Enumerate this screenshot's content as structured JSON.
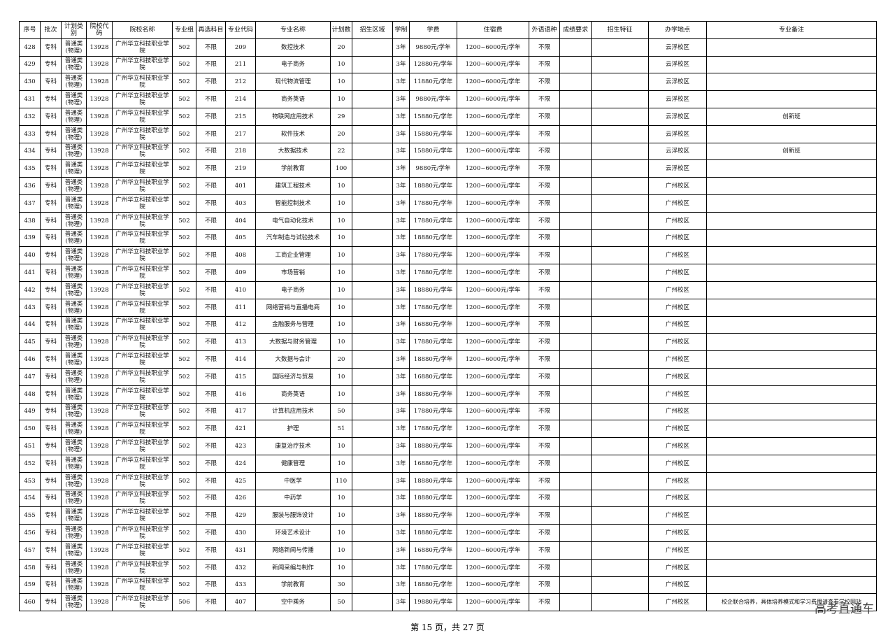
{
  "table": {
    "header": [
      "序号",
      "批次",
      "计划类别",
      "院校代码",
      "院校名称",
      "专业组",
      "再选科目",
      "专业代码",
      "专业名称",
      "计划数",
      "招生区域",
      "学制",
      "学费",
      "住宿费",
      "外语语种",
      "成绩要求",
      "招生特征",
      "办学地点",
      "专业备注"
    ],
    "rows": [
      {
        "n": "428",
        "b": "专科",
        "t": "普通类(物理)",
        "c": "13928",
        "s": "广州华立科技职业学院",
        "g": "502",
        "x": "不限",
        "m": "209",
        "name": "数控技术",
        "p": "20",
        "y": "3年",
        "fee": "9880元/学年",
        "dorm": "1200~6000元/学年",
        "lang": "不限",
        "loc": "云浮校区"
      },
      {
        "n": "429",
        "b": "专科",
        "t": "普通类(物理)",
        "c": "13928",
        "s": "广州华立科技职业学院",
        "g": "502",
        "x": "不限",
        "m": "211",
        "name": "电子商务",
        "p": "10",
        "y": "3年",
        "fee": "12880元/学年",
        "dorm": "1200~6000元/学年",
        "lang": "不限",
        "loc": "云浮校区"
      },
      {
        "n": "430",
        "b": "专科",
        "t": "普通类(物理)",
        "c": "13928",
        "s": "广州华立科技职业学院",
        "g": "502",
        "x": "不限",
        "m": "212",
        "name": "现代物流管理",
        "p": "10",
        "y": "3年",
        "fee": "11880元/学年",
        "dorm": "1200~6000元/学年",
        "lang": "不限",
        "loc": "云浮校区"
      },
      {
        "n": "431",
        "b": "专科",
        "t": "普通类(物理)",
        "c": "13928",
        "s": "广州华立科技职业学院",
        "g": "502",
        "x": "不限",
        "m": "214",
        "name": "商务英语",
        "p": "10",
        "y": "3年",
        "fee": "9880元/学年",
        "dorm": "1200~6000元/学年",
        "lang": "不限",
        "loc": "云浮校区"
      },
      {
        "n": "432",
        "b": "专科",
        "t": "普通类(物理)",
        "c": "13928",
        "s": "广州华立科技职业学院",
        "g": "502",
        "x": "不限",
        "m": "215",
        "name": "物联网应用技术",
        "p": "29",
        "y": "3年",
        "fee": "15880元/学年",
        "dorm": "1200~6000元/学年",
        "lang": "不限",
        "loc": "云浮校区",
        "note": "创新班"
      },
      {
        "n": "433",
        "b": "专科",
        "t": "普通类(物理)",
        "c": "13928",
        "s": "广州华立科技职业学院",
        "g": "502",
        "x": "不限",
        "m": "217",
        "name": "软件技术",
        "p": "20",
        "y": "3年",
        "fee": "15880元/学年",
        "dorm": "1200~6000元/学年",
        "lang": "不限",
        "loc": "云浮校区"
      },
      {
        "n": "434",
        "b": "专科",
        "t": "普通类(物理)",
        "c": "13928",
        "s": "广州华立科技职业学院",
        "g": "502",
        "x": "不限",
        "m": "218",
        "name": "大数据技术",
        "p": "22",
        "y": "3年",
        "fee": "15880元/学年",
        "dorm": "1200~6000元/学年",
        "lang": "不限",
        "loc": "云浮校区",
        "note": "创新班"
      },
      {
        "n": "435",
        "b": "专科",
        "t": "普通类(物理)",
        "c": "13928",
        "s": "广州华立科技职业学院",
        "g": "502",
        "x": "不限",
        "m": "219",
        "name": "学前教育",
        "p": "100",
        "y": "3年",
        "fee": "9880元/学年",
        "dorm": "1200~6000元/学年",
        "lang": "不限",
        "loc": "云浮校区"
      },
      {
        "n": "436",
        "b": "专科",
        "t": "普通类(物理)",
        "c": "13928",
        "s": "广州华立科技职业学院",
        "g": "502",
        "x": "不限",
        "m": "401",
        "name": "建筑工程技术",
        "p": "10",
        "y": "3年",
        "fee": "18880元/学年",
        "dorm": "1200~6000元/学年",
        "lang": "不限",
        "loc": "广州校区"
      },
      {
        "n": "437",
        "b": "专科",
        "t": "普通类(物理)",
        "c": "13928",
        "s": "广州华立科技职业学院",
        "g": "502",
        "x": "不限",
        "m": "403",
        "name": "智能控制技术",
        "p": "10",
        "y": "3年",
        "fee": "17880元/学年",
        "dorm": "1200~6000元/学年",
        "lang": "不限",
        "loc": "广州校区"
      },
      {
        "n": "438",
        "b": "专科",
        "t": "普通类(物理)",
        "c": "13928",
        "s": "广州华立科技职业学院",
        "g": "502",
        "x": "不限",
        "m": "404",
        "name": "电气自动化技术",
        "p": "10",
        "y": "3年",
        "fee": "17880元/学年",
        "dorm": "1200~6000元/学年",
        "lang": "不限",
        "loc": "广州校区"
      },
      {
        "n": "439",
        "b": "专科",
        "t": "普通类(物理)",
        "c": "13928",
        "s": "广州华立科技职业学院",
        "g": "502",
        "x": "不限",
        "m": "405",
        "name": "汽车制造与试验技术",
        "p": "10",
        "y": "3年",
        "fee": "18880元/学年",
        "dorm": "1200~6000元/学年",
        "lang": "不限",
        "loc": "广州校区"
      },
      {
        "n": "440",
        "b": "专科",
        "t": "普通类(物理)",
        "c": "13928",
        "s": "广州华立科技职业学院",
        "g": "502",
        "x": "不限",
        "m": "408",
        "name": "工商企业管理",
        "p": "10",
        "y": "3年",
        "fee": "17880元/学年",
        "dorm": "1200~6000元/学年",
        "lang": "不限",
        "loc": "广州校区"
      },
      {
        "n": "441",
        "b": "专科",
        "t": "普通类(物理)",
        "c": "13928",
        "s": "广州华立科技职业学院",
        "g": "502",
        "x": "不限",
        "m": "409",
        "name": "市场营销",
        "p": "10",
        "y": "3年",
        "fee": "17880元/学年",
        "dorm": "1200~6000元/学年",
        "lang": "不限",
        "loc": "广州校区"
      },
      {
        "n": "442",
        "b": "专科",
        "t": "普通类(物理)",
        "c": "13928",
        "s": "广州华立科技职业学院",
        "g": "502",
        "x": "不限",
        "m": "410",
        "name": "电子商务",
        "p": "10",
        "y": "3年",
        "fee": "18880元/学年",
        "dorm": "1200~6000元/学年",
        "lang": "不限",
        "loc": "广州校区"
      },
      {
        "n": "443",
        "b": "专科",
        "t": "普通类(物理)",
        "c": "13928",
        "s": "广州华立科技职业学院",
        "g": "502",
        "x": "不限",
        "m": "411",
        "name": "网络营销与直播电商",
        "p": "10",
        "y": "3年",
        "fee": "17880元/学年",
        "dorm": "1200~6000元/学年",
        "lang": "不限",
        "loc": "广州校区"
      },
      {
        "n": "444",
        "b": "专科",
        "t": "普通类(物理)",
        "c": "13928",
        "s": "广州华立科技职业学院",
        "g": "502",
        "x": "不限",
        "m": "412",
        "name": "金融服务与管理",
        "p": "10",
        "y": "3年",
        "fee": "16880元/学年",
        "dorm": "1200~6000元/学年",
        "lang": "不限",
        "loc": "广州校区"
      },
      {
        "n": "445",
        "b": "专科",
        "t": "普通类(物理)",
        "c": "13928",
        "s": "广州华立科技职业学院",
        "g": "502",
        "x": "不限",
        "m": "413",
        "name": "大数据与财务管理",
        "p": "10",
        "y": "3年",
        "fee": "17880元/学年",
        "dorm": "1200~6000元/学年",
        "lang": "不限",
        "loc": "广州校区"
      },
      {
        "n": "446",
        "b": "专科",
        "t": "普通类(物理)",
        "c": "13928",
        "s": "广州华立科技职业学院",
        "g": "502",
        "x": "不限",
        "m": "414",
        "name": "大数据与会计",
        "p": "20",
        "y": "3年",
        "fee": "18880元/学年",
        "dorm": "1200~6000元/学年",
        "lang": "不限",
        "loc": "广州校区"
      },
      {
        "n": "447",
        "b": "专科",
        "t": "普通类(物理)",
        "c": "13928",
        "s": "广州华立科技职业学院",
        "g": "502",
        "x": "不限",
        "m": "415",
        "name": "国际经济与贸易",
        "p": "10",
        "y": "3年",
        "fee": "16880元/学年",
        "dorm": "1200~6000元/学年",
        "lang": "不限",
        "loc": "广州校区"
      },
      {
        "n": "448",
        "b": "专科",
        "t": "普通类(物理)",
        "c": "13928",
        "s": "广州华立科技职业学院",
        "g": "502",
        "x": "不限",
        "m": "416",
        "name": "商务英语",
        "p": "10",
        "y": "3年",
        "fee": "18880元/学年",
        "dorm": "1200~6000元/学年",
        "lang": "不限",
        "loc": "广州校区"
      },
      {
        "n": "449",
        "b": "专科",
        "t": "普通类(物理)",
        "c": "13928",
        "s": "广州华立科技职业学院",
        "g": "502",
        "x": "不限",
        "m": "417",
        "name": "计算机应用技术",
        "p": "50",
        "y": "3年",
        "fee": "17880元/学年",
        "dorm": "1200~6000元/学年",
        "lang": "不限",
        "loc": "广州校区"
      },
      {
        "n": "450",
        "b": "专科",
        "t": "普通类(物理)",
        "c": "13928",
        "s": "广州华立科技职业学院",
        "g": "502",
        "x": "不限",
        "m": "421",
        "name": "护理",
        "p": "51",
        "y": "3年",
        "fee": "17880元/学年",
        "dorm": "1200~6000元/学年",
        "lang": "不限",
        "loc": "广州校区"
      },
      {
        "n": "451",
        "b": "专科",
        "t": "普通类(物理)",
        "c": "13928",
        "s": "广州华立科技职业学院",
        "g": "502",
        "x": "不限",
        "m": "423",
        "name": "康复治疗技术",
        "p": "10",
        "y": "3年",
        "fee": "18880元/学年",
        "dorm": "1200~6000元/学年",
        "lang": "不限",
        "loc": "广州校区"
      },
      {
        "n": "452",
        "b": "专科",
        "t": "普通类(物理)",
        "c": "13928",
        "s": "广州华立科技职业学院",
        "g": "502",
        "x": "不限",
        "m": "424",
        "name": "健康管理",
        "p": "10",
        "y": "3年",
        "fee": "16880元/学年",
        "dorm": "1200~6000元/学年",
        "lang": "不限",
        "loc": "广州校区"
      },
      {
        "n": "453",
        "b": "专科",
        "t": "普通类(物理)",
        "c": "13928",
        "s": "广州华立科技职业学院",
        "g": "502",
        "x": "不限",
        "m": "425",
        "name": "中医学",
        "p": "110",
        "y": "3年",
        "fee": "18880元/学年",
        "dorm": "1200~6000元/学年",
        "lang": "不限",
        "loc": "广州校区"
      },
      {
        "n": "454",
        "b": "专科",
        "t": "普通类(物理)",
        "c": "13928",
        "s": "广州华立科技职业学院",
        "g": "502",
        "x": "不限",
        "m": "426",
        "name": "中药学",
        "p": "10",
        "y": "3年",
        "fee": "18880元/学年",
        "dorm": "1200~6000元/学年",
        "lang": "不限",
        "loc": "广州校区"
      },
      {
        "n": "455",
        "b": "专科",
        "t": "普通类(物理)",
        "c": "13928",
        "s": "广州华立科技职业学院",
        "g": "502",
        "x": "不限",
        "m": "429",
        "name": "服装与服饰设计",
        "p": "10",
        "y": "3年",
        "fee": "18880元/学年",
        "dorm": "1200~6000元/学年",
        "lang": "不限",
        "loc": "广州校区"
      },
      {
        "n": "456",
        "b": "专科",
        "t": "普通类(物理)",
        "c": "13928",
        "s": "广州华立科技职业学院",
        "g": "502",
        "x": "不限",
        "m": "430",
        "name": "环境艺术设计",
        "p": "10",
        "y": "3年",
        "fee": "18880元/学年",
        "dorm": "1200~6000元/学年",
        "lang": "不限",
        "loc": "广州校区"
      },
      {
        "n": "457",
        "b": "专科",
        "t": "普通类(物理)",
        "c": "13928",
        "s": "广州华立科技职业学院",
        "g": "502",
        "x": "不限",
        "m": "431",
        "name": "网络新闻与传播",
        "p": "10",
        "y": "3年",
        "fee": "16880元/学年",
        "dorm": "1200~6000元/学年",
        "lang": "不限",
        "loc": "广州校区"
      },
      {
        "n": "458",
        "b": "专科",
        "t": "普通类(物理)",
        "c": "13928",
        "s": "广州华立科技职业学院",
        "g": "502",
        "x": "不限",
        "m": "432",
        "name": "新闻采编与制作",
        "p": "10",
        "y": "3年",
        "fee": "17880元/学年",
        "dorm": "1200~6000元/学年",
        "lang": "不限",
        "loc": "广州校区"
      },
      {
        "n": "459",
        "b": "专科",
        "t": "普通类(物理)",
        "c": "13928",
        "s": "广州华立科技职业学院",
        "g": "502",
        "x": "不限",
        "m": "433",
        "name": "学前教育",
        "p": "30",
        "y": "3年",
        "fee": "18880元/学年",
        "dorm": "1200~6000元/学年",
        "lang": "不限",
        "loc": "广州校区"
      },
      {
        "n": "460",
        "b": "专科",
        "t": "普通类(物理)",
        "c": "13928",
        "s": "广州华立科技职业学院",
        "g": "506",
        "x": "不限",
        "m": "407",
        "name": "空中乘务",
        "p": "50",
        "y": "3年",
        "fee": "19880元/学年",
        "dorm": "1200~6000元/学年",
        "lang": "不限",
        "loc": "广州校区",
        "note": "校企联合培养，具体培养模式和学习费用请查看学校网站"
      }
    ]
  },
  "footer": "第 15 页，共 27 页",
  "brand": "高考直通车"
}
